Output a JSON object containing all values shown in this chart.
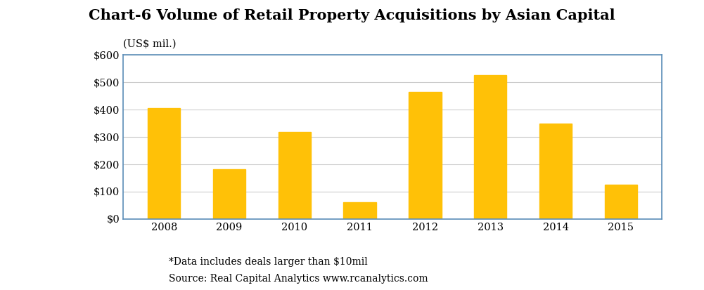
{
  "title": "Chart-6 Volume of Retail Property Acquisitions by Asian Capital",
  "subtitle": "(US$ mil.)",
  "categories": [
    "2008",
    "2009",
    "2010",
    "2011",
    "2012",
    "2013",
    "2014",
    "2015"
  ],
  "values": [
    405,
    182,
    318,
    60,
    465,
    527,
    350,
    125
  ],
  "bar_color": "#FFC107",
  "bar_edge_color": "#FFC107",
  "ylim": [
    0,
    600
  ],
  "yticks": [
    0,
    100,
    200,
    300,
    400,
    500,
    600
  ],
  "ytick_labels": [
    "$0",
    "$100",
    "$200",
    "$300",
    "$400",
    "$500",
    "$600"
  ],
  "grid_color": "#CCCCCC",
  "spine_color": "#5B8DB8",
  "footnote1": "*Data includes deals larger than $10mil",
  "footnote2": "Source: Real Capital Analytics www.rcanalytics.com",
  "title_fontsize": 15,
  "subtitle_fontsize": 10.5,
  "axis_tick_fontsize": 10.5,
  "footnote_fontsize": 10,
  "background_color": "#FFFFFF",
  "plot_bg_color": "#FFFFFF",
  "bar_width": 0.5
}
